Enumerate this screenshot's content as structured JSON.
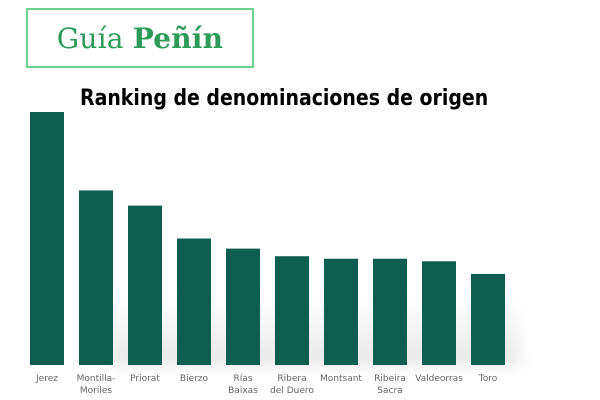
{
  "logo": {
    "part1": "Guía ",
    "part2": "Peñín"
  },
  "chart_data": {
    "type": "bar",
    "title": "Ranking de denominaciones de origen",
    "categories": [
      [
        "Jerez"
      ],
      [
        "Montilla-",
        "Moriles"
      ],
      [
        "Priorat"
      ],
      [
        "Bierzo"
      ],
      [
        "Rías",
        "Baixas"
      ],
      [
        "Ribera",
        "del Duero"
      ],
      [
        "Montsant"
      ],
      [
        "Ribeira",
        "Sacra"
      ],
      [
        "Valdeorras"
      ],
      [
        "Toro"
      ]
    ],
    "values": [
      100,
      69,
      63,
      50,
      46,
      43,
      42,
      42,
      41,
      36
    ],
    "ylim": [
      0,
      100
    ],
    "bar_color": "#0d5e4e",
    "grid": false,
    "legend": "none"
  }
}
